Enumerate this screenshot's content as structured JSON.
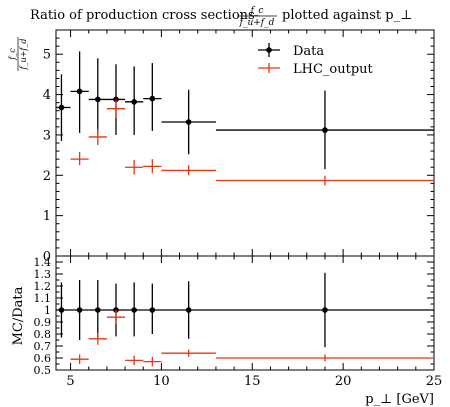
{
  "chart_data": {
    "type": "scatter",
    "title": "Ratio of production cross sections",
    "title_fraction": {
      "numerator": "f_c",
      "denominator": "f_u+f_d"
    },
    "title_suffix": "plotted against p_⊥",
    "ylabel": {
      "numerator": "f_c",
      "denominator": "f_u+f_d"
    },
    "ratio_ylabel": "MC/Data",
    "xlabel": "p_⊥ [GeV]",
    "xlim": [
      4.2,
      25
    ],
    "ylim": [
      0,
      5.6
    ],
    "ratio_ylim": [
      0.5,
      1.45
    ],
    "x_ticks": [
      "5",
      "10",
      "15",
      "20",
      "25"
    ],
    "x_tick_values": [
      5,
      10,
      15,
      20,
      25
    ],
    "y_ticks": [
      "0",
      "1",
      "2",
      "3",
      "4",
      "5"
    ],
    "y_tick_values": [
      0,
      1,
      2,
      3,
      4,
      5
    ],
    "ratio_y_ticks": [
      "0.5",
      "0.6",
      "0.7",
      "0.8",
      "0.9",
      "1",
      "1.1",
      "1.2",
      "1.3",
      "1.4"
    ],
    "ratio_y_tick_values": [
      0.5,
      0.6,
      0.7,
      0.8,
      0.9,
      1.0,
      1.1,
      1.2,
      1.3,
      1.4
    ],
    "legend_position": "top-right",
    "series": [
      {
        "name": "Data",
        "color": "#000000",
        "marker": "dot",
        "points": [
          {
            "x": 4.5,
            "xlo": 4.2,
            "xhi": 5.0,
            "y": 3.68,
            "ylo": 2.85,
            "yhi": 4.5
          },
          {
            "x": 5.5,
            "xlo": 5.0,
            "xhi": 6.0,
            "y": 4.08,
            "ylo": 3.05,
            "yhi": 5.07
          },
          {
            "x": 6.5,
            "xlo": 6.0,
            "xhi": 7.0,
            "y": 3.88,
            "ylo": 3.0,
            "yhi": 4.9
          },
          {
            "x": 7.5,
            "xlo": 7.0,
            "xhi": 8.0,
            "y": 3.88,
            "ylo": 3.0,
            "yhi": 4.75
          },
          {
            "x": 8.5,
            "xlo": 8.0,
            "xhi": 9.0,
            "y": 3.82,
            "ylo": 3.0,
            "yhi": 4.7
          },
          {
            "x": 9.5,
            "xlo": 9.0,
            "xhi": 10.0,
            "y": 3.9,
            "ylo": 3.1,
            "yhi": 4.78
          },
          {
            "x": 11.5,
            "xlo": 10.0,
            "xhi": 13.0,
            "y": 3.32,
            "ylo": 2.52,
            "yhi": 4.12
          },
          {
            "x": 19.0,
            "xlo": 13.0,
            "xhi": 25.0,
            "y": 3.12,
            "ylo": 2.15,
            "yhi": 4.1
          }
        ]
      },
      {
        "name": "LHC_output",
        "color": "#ee3311",
        "marker": "none",
        "points": [
          {
            "x": 5.5,
            "xlo": 5.0,
            "xhi": 6.0,
            "y": 2.4,
            "ylo": 2.25,
            "yhi": 2.58
          },
          {
            "x": 6.5,
            "xlo": 6.0,
            "xhi": 7.0,
            "y": 2.95,
            "ylo": 2.75,
            "yhi": 3.15
          },
          {
            "x": 7.5,
            "xlo": 7.0,
            "xhi": 8.0,
            "y": 3.65,
            "ylo": 3.42,
            "yhi": 3.88
          },
          {
            "x": 8.5,
            "xlo": 8.0,
            "xhi": 9.0,
            "y": 2.2,
            "ylo": 2.02,
            "yhi": 2.38
          },
          {
            "x": 9.5,
            "xlo": 9.0,
            "xhi": 10.0,
            "y": 2.22,
            "ylo": 2.05,
            "yhi": 2.4
          },
          {
            "x": 11.5,
            "xlo": 10.0,
            "xhi": 13.0,
            "y": 2.12,
            "ylo": 2.0,
            "yhi": 2.25
          },
          {
            "x": 19.0,
            "xlo": 13.0,
            "xhi": 25.0,
            "y": 1.87,
            "ylo": 1.75,
            "yhi": 1.99
          }
        ]
      }
    ],
    "ratio_series": [
      {
        "name": "Data",
        "color": "#000000",
        "points": [
          {
            "x": 4.5,
            "xlo": 4.2,
            "xhi": 5.0,
            "y": 1.0,
            "ylo": 0.77,
            "yhi": 1.23
          },
          {
            "x": 5.5,
            "xlo": 5.0,
            "xhi": 6.0,
            "y": 1.0,
            "ylo": 0.75,
            "yhi": 1.25
          },
          {
            "x": 6.5,
            "xlo": 6.0,
            "xhi": 7.0,
            "y": 1.0,
            "ylo": 0.77,
            "yhi": 1.25
          },
          {
            "x": 7.5,
            "xlo": 7.0,
            "xhi": 8.0,
            "y": 1.0,
            "ylo": 0.78,
            "yhi": 1.22
          },
          {
            "x": 8.5,
            "xlo": 8.0,
            "xhi": 9.0,
            "y": 1.0,
            "ylo": 0.78,
            "yhi": 1.23
          },
          {
            "x": 9.5,
            "xlo": 9.0,
            "xhi": 10.0,
            "y": 1.0,
            "ylo": 0.8,
            "yhi": 1.22
          },
          {
            "x": 11.5,
            "xlo": 10.0,
            "xhi": 13.0,
            "y": 1.0,
            "ylo": 0.76,
            "yhi": 1.24
          },
          {
            "x": 19.0,
            "xlo": 13.0,
            "xhi": 25.0,
            "y": 1.0,
            "ylo": 0.69,
            "yhi": 1.31
          }
        ]
      },
      {
        "name": "LHC_output",
        "color": "#ee3311",
        "points": [
          {
            "x": 5.5,
            "xlo": 5.0,
            "xhi": 6.0,
            "y": 0.59,
            "ylo": 0.55,
            "yhi": 0.63
          },
          {
            "x": 6.5,
            "xlo": 6.0,
            "xhi": 7.0,
            "y": 0.76,
            "ylo": 0.71,
            "yhi": 0.81
          },
          {
            "x": 7.5,
            "xlo": 7.0,
            "xhi": 8.0,
            "y": 0.94,
            "ylo": 0.88,
            "yhi": 1.0
          },
          {
            "x": 8.5,
            "xlo": 8.0,
            "xhi": 9.0,
            "y": 0.58,
            "ylo": 0.54,
            "yhi": 0.62
          },
          {
            "x": 9.5,
            "xlo": 9.0,
            "xhi": 10.0,
            "y": 0.57,
            "ylo": 0.53,
            "yhi": 0.61
          },
          {
            "x": 11.5,
            "xlo": 10.0,
            "xhi": 13.0,
            "y": 0.64,
            "ylo": 0.61,
            "yhi": 0.67
          },
          {
            "x": 19.0,
            "xlo": 13.0,
            "xhi": 25.0,
            "y": 0.6,
            "ylo": 0.57,
            "yhi": 0.63
          }
        ]
      }
    ]
  }
}
